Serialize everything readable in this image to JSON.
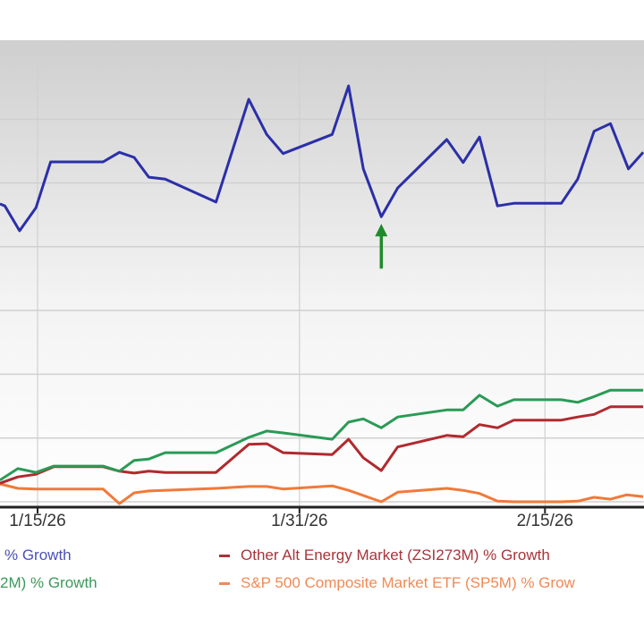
{
  "chart_data": {
    "type": "line",
    "title": "",
    "xlabel": "",
    "ylabel": "",
    "x_unit": "days after 1/15/26 (estimated)",
    "y_unit": "relative % growth (estimated; gridline = 10 units)",
    "xlim": [
      -2.3,
      37.0
    ],
    "ylim": [
      -2.2,
      72.4
    ],
    "grid": true,
    "x_ticks": [
      {
        "day": 0,
        "label": "1/15/26"
      },
      {
        "day": 16,
        "label": "1/31/26"
      },
      {
        "day": 31,
        "label": "2/15/26"
      }
    ],
    "annotations": [
      {
        "type": "up-arrow",
        "day": 21.0,
        "value": 44.7,
        "color": "#1e8a2a"
      }
    ],
    "series": [
      {
        "name": "% Growth",
        "color": "#2b2fa8",
        "x": [
          -2.3,
          -2.0,
          -1.1,
          -0.1,
          0.8,
          4.0,
          5.0,
          5.9,
          6.8,
          7.8,
          10.9,
          12.9,
          14.0,
          15.0,
          18.0,
          19.0,
          19.9,
          21.0,
          22.0,
          25.0,
          26.0,
          27.0,
          28.1,
          29.1,
          32.0,
          33.0,
          34.0,
          35.0,
          36.1,
          37.0
        ],
        "y": [
          46.7,
          46.4,
          42.5,
          46.1,
          53.3,
          53.3,
          54.8,
          54.0,
          50.9,
          50.6,
          47.0,
          63.1,
          57.6,
          54.6,
          57.6,
          65.2,
          52.2,
          44.7,
          49.2,
          56.8,
          53.2,
          57.2,
          46.4,
          46.8,
          46.8,
          50.6,
          58.1,
          59.3,
          52.2,
          54.8
        ]
      },
      {
        "name": "Other Alt Energy Market (ZSI273M) % Growth",
        "color": "#b02a2e",
        "x": [
          -2.3,
          -1.2,
          -0.1,
          1.0,
          4.0,
          5.0,
          5.9,
          6.8,
          7.8,
          10.9,
          12.9,
          14.0,
          15.0,
          18.0,
          19.0,
          19.9,
          21.0,
          22.0,
          25.0,
          26.0,
          27.0,
          28.1,
          29.1,
          32.0,
          33.0,
          34.0,
          35.0,
          37.0
        ],
        "y": [
          2.9,
          3.9,
          4.3,
          5.5,
          5.5,
          4.8,
          4.5,
          4.8,
          4.6,
          4.6,
          9.0,
          9.1,
          7.7,
          7.4,
          9.8,
          6.9,
          4.9,
          8.6,
          10.4,
          10.2,
          12.1,
          11.6,
          12.8,
          12.8,
          13.3,
          13.7,
          14.9,
          14.9
        ]
      },
      {
        "name": "2M) % Growth",
        "color": "#2a9a55",
        "x": [
          -2.3,
          -1.2,
          -0.1,
          1.0,
          4.0,
          5.0,
          5.9,
          6.8,
          7.8,
          10.9,
          12.9,
          14.0,
          15.0,
          18.0,
          19.0,
          19.9,
          21.0,
          22.0,
          25.0,
          26.0,
          27.0,
          28.1,
          29.1,
          32.0,
          33.0,
          34.0,
          35.0,
          37.0
        ],
        "y": [
          3.4,
          5.2,
          4.6,
          5.6,
          5.6,
          4.8,
          6.5,
          6.7,
          7.7,
          7.7,
          10.1,
          11.1,
          10.8,
          9.8,
          12.5,
          13.0,
          11.6,
          13.3,
          14.4,
          14.4,
          16.7,
          15.0,
          16.0,
          16.0,
          15.6,
          16.5,
          17.5,
          17.5
        ]
      },
      {
        "name": "S&P 500 Composite Market ETF (SP5M) % Grow",
        "color": "#f07a3a",
        "x": [
          -2.3,
          -1.2,
          -0.1,
          4.0,
          5.0,
          5.9,
          6.8,
          10.9,
          12.9,
          14.0,
          15.0,
          18.0,
          19.0,
          21.0,
          22.0,
          25.0,
          26.0,
          27.0,
          28.1,
          29.1,
          32.0,
          33.0,
          34.0,
          35.0,
          36.0,
          37.0
        ],
        "y": [
          2.8,
          2.1,
          2.0,
          2.0,
          -0.3,
          1.4,
          1.7,
          2.1,
          2.4,
          2.4,
          2.0,
          2.5,
          1.8,
          0.0,
          1.5,
          2.1,
          1.8,
          1.3,
          0.1,
          0.0,
          0.0,
          0.1,
          0.7,
          0.4,
          1.1,
          0.8
        ]
      }
    ]
  },
  "legend": [
    {
      "label": "% Growth",
      "color": "#4b4fb8"
    },
    {
      "label": "Other Alt Energy Market (ZSI273M) % Growth",
      "color": "#a8343a"
    },
    {
      "label": "2M) % Growth",
      "color": "#3a9a5a"
    },
    {
      "label": "S&P 500 Composite Market ETF (SP5M) % Grow",
      "color": "#f08a55"
    }
  ]
}
